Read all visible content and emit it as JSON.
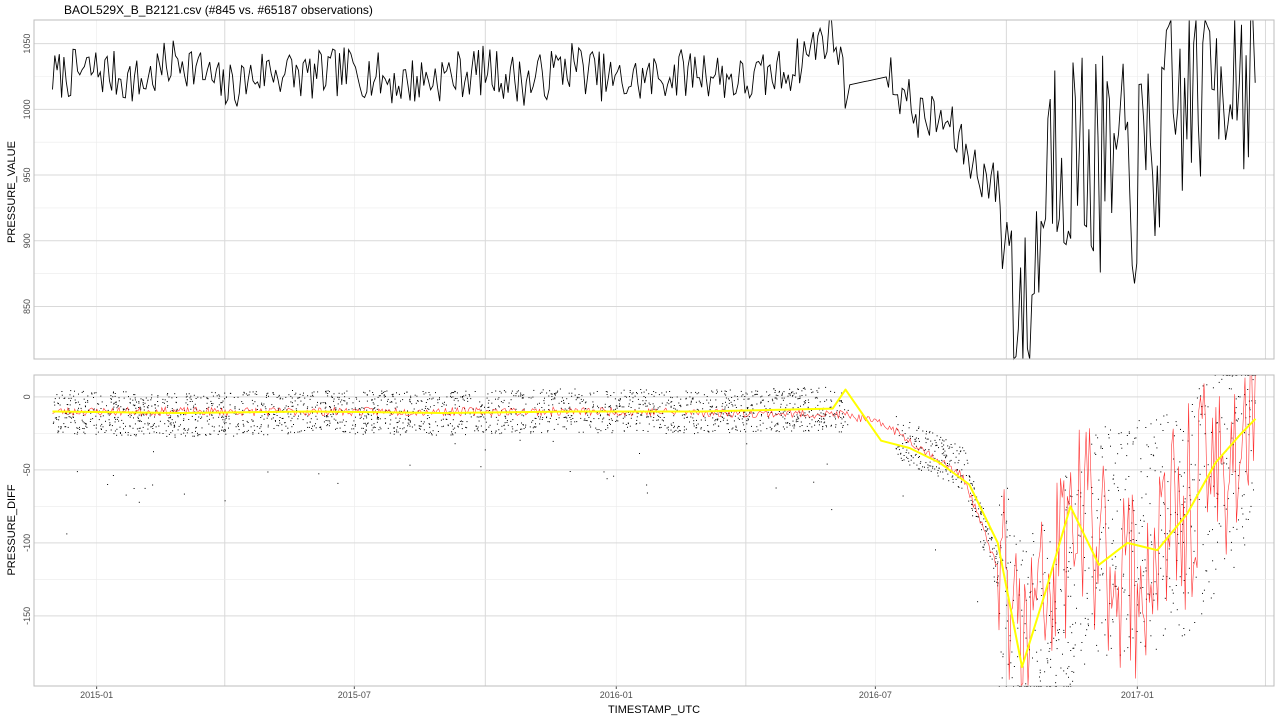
{
  "chart_data": [
    {
      "type": "line",
      "title": "BAOL529X_B_B2121.csv (#845 vs. #65187 observations)",
      "xlabel": "",
      "ylabel": "PRESSURE_VALUE",
      "ylim": [
        810,
        1068
      ],
      "yticks": [
        850,
        900,
        950,
        1000,
        1050
      ],
      "grid": true,
      "series": [
        {
          "color": "#000000",
          "x": [
            "2014-12-01",
            "2015-01-01",
            "2015-02-01",
            "2015-03-01",
            "2015-04-01",
            "2015-05-01",
            "2015-06-01",
            "2015-07-01",
            "2015-08-01",
            "2015-09-01",
            "2015-10-01",
            "2015-11-01",
            "2015-12-01",
            "2016-01-01",
            "2016-02-01",
            "2016-03-01",
            "2016-04-01",
            "2016-05-01",
            "2016-06-01",
            "2016-06-10",
            "2016-07-10",
            "2016-08-01",
            "2016-08-20",
            "2016-09-10",
            "2016-09-25",
            "2016-10-15",
            "2016-11-01",
            "2016-12-01",
            "2017-01-01",
            "2017-02-01",
            "2017-03-01",
            "2017-03-25"
          ],
          "values": [
            1025,
            1030,
            1020,
            1040,
            1015,
            1030,
            1025,
            1030,
            1020,
            1025,
            1030,
            1020,
            1035,
            1020,
            1025,
            1030,
            1020,
            1030,
            1062,
            1018,
            1025,
            995,
            990,
            955,
            940,
            820,
            980,
            960,
            945,
            1005,
            1040,
            1035
          ]
        }
      ]
    },
    {
      "type": "scatter",
      "title": "",
      "xlabel": "TIMESTAMP_UTC",
      "ylabel": "PRESSURE_DIFF",
      "ylim": [
        -198,
        15
      ],
      "yticks": [
        0,
        -50,
        -100,
        -150
      ],
      "xticks": [
        "2015-01",
        "2015-07",
        "2016-01",
        "2016-07",
        "2017-01"
      ],
      "grid": true,
      "series": [
        {
          "color": "#000000",
          "x": [
            "2014-12-01",
            "2015-03-01",
            "2015-06-01",
            "2015-09-01",
            "2015-12-01",
            "2016-03-01",
            "2016-06-01",
            "2016-08-01",
            "2016-09-01",
            "2016-10-15",
            "2016-12-01",
            "2017-02-01",
            "2017-03-25"
          ],
          "values": [
            -10,
            -12,
            -10,
            -11,
            -9,
            -10,
            -8,
            -35,
            -50,
            -180,
            -100,
            -90,
            -15
          ]
        },
        {
          "color": "#ff0000",
          "x": [
            "2014-12-01",
            "2015-06-01",
            "2016-01-01",
            "2016-06-10",
            "2016-07-10",
            "2016-09-01",
            "2016-10-15",
            "2016-11-20",
            "2017-01-01",
            "2017-02-15",
            "2017-03-25"
          ],
          "values": [
            -10,
            -10,
            -10,
            -12,
            -20,
            -55,
            -170,
            -80,
            -130,
            -60,
            -20
          ]
        },
        {
          "color": "#ffff00",
          "x": [
            "2014-12-01",
            "2015-03-01",
            "2015-06-01",
            "2015-09-01",
            "2015-12-01",
            "2016-03-01",
            "2016-06-01",
            "2016-06-10",
            "2016-07-05",
            "2016-07-25",
            "2016-08-15",
            "2016-09-05",
            "2016-09-25",
            "2016-10-12",
            "2016-10-28",
            "2016-11-15",
            "2016-12-05",
            "2016-12-25",
            "2017-01-15",
            "2017-02-05",
            "2017-02-25",
            "2017-03-15",
            "2017-03-25"
          ],
          "values": [
            -10,
            -11,
            -10,
            -11,
            -10,
            -10,
            -8,
            5,
            -30,
            -35,
            -45,
            -60,
            -100,
            -185,
            -135,
            -75,
            -115,
            -100,
            -105,
            -80,
            -45,
            -25,
            -15
          ]
        }
      ]
    }
  ]
}
